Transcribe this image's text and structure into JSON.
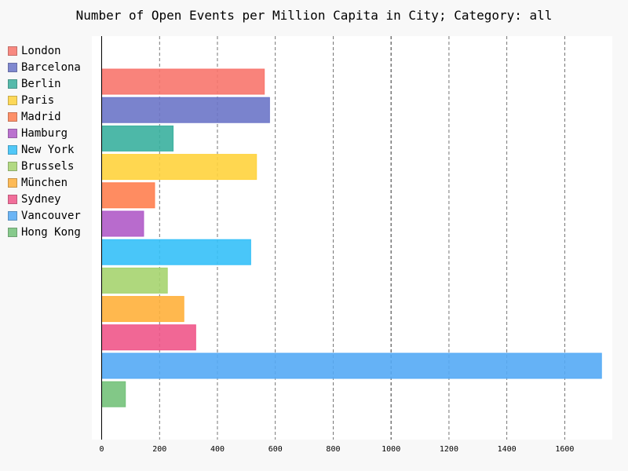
{
  "chart_data": {
    "type": "bar",
    "orientation": "horizontal",
    "title": "Number of Open Events per Million Capita in City; Category: all",
    "xlabel": "",
    "ylabel": "",
    "xlim": [
      0,
      1760
    ],
    "xticks": [
      0,
      200,
      400,
      600,
      800,
      1000,
      1200,
      1400,
      1600
    ],
    "grid": "vertical dashed",
    "legend_position": "left",
    "series": [
      {
        "name": "London",
        "value": 562,
        "color": "#f8766d"
      },
      {
        "name": "Barcelona",
        "value": 580,
        "color": "#6b75c8"
      },
      {
        "name": "Berlin",
        "value": 247,
        "color": "#3ab09e"
      },
      {
        "name": "Paris",
        "value": 535,
        "color": "#ffd33d"
      },
      {
        "name": "Madrid",
        "value": 183,
        "color": "#ff7f50"
      },
      {
        "name": "Hamburg",
        "value": 145,
        "color": "#b05bc8"
      },
      {
        "name": "New York",
        "value": 515,
        "color": "#35c0f8"
      },
      {
        "name": "Brussels",
        "value": 227,
        "color": "#a6d46f"
      },
      {
        "name": "München",
        "value": 284,
        "color": "#ffb03b"
      },
      {
        "name": "Sydney",
        "value": 325,
        "color": "#f0568a"
      },
      {
        "name": "Vancouver",
        "value": 1727,
        "color": "#54aaf5"
      },
      {
        "name": "Hong Kong",
        "value": 82,
        "color": "#74c27a"
      }
    ]
  }
}
